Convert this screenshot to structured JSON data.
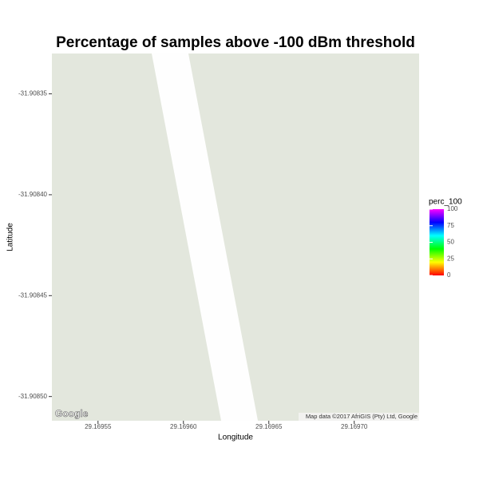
{
  "chart_data": {
    "type": "map",
    "title": "Percentage of samples above -100 dBm threshold",
    "x_label": "Longitude",
    "y_label": "Latitude",
    "xlim": [
      29.169523,
      29.169738
    ],
    "ylim": [
      -31.908512,
      -31.90833
    ],
    "xticks": [
      {
        "value": 29.16955,
        "label": "29.16955"
      },
      {
        "value": 29.1696,
        "label": "29.16960"
      },
      {
        "value": 29.16965,
        "label": "29.16965"
      },
      {
        "value": 29.1697,
        "label": "29.16970"
      }
    ],
    "yticks": [
      {
        "value": -31.90835,
        "label": "-31.90835"
      },
      {
        "value": -31.9084,
        "label": "-31.90840"
      },
      {
        "value": -31.90845,
        "label": "-31.90845"
      },
      {
        "value": -31.9085,
        "label": "-31.90850"
      }
    ],
    "legend": {
      "title": "perc_100",
      "lim": [
        0,
        100
      ],
      "ticks": [
        0,
        25,
        50,
        75,
        100
      ],
      "colors": [
        "#ff0000",
        "#ffff00",
        "#00ff00",
        "#00ffff",
        "#0000ff",
        "#ff00ff"
      ]
    },
    "logo": "Google",
    "attribution": "Map data ©2017 AfriGIS (Pty) Ltd, Google"
  }
}
